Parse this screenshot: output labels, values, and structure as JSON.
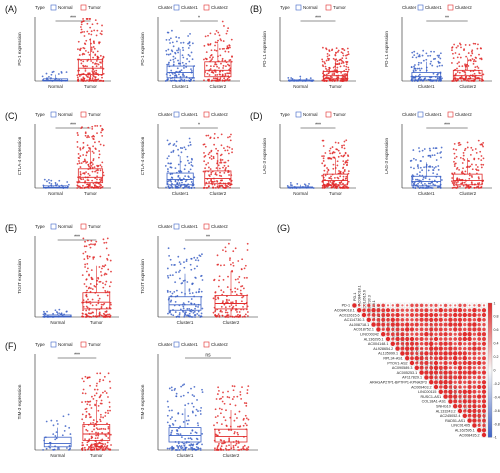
{
  "chart_data": [
    {
      "panel": "(A)",
      "type": "box",
      "legend_title": "Type",
      "ylabel": "PD-1 expression",
      "categories": [
        "Normal",
        "Tumor"
      ],
      "colors": [
        "#3d62c6",
        "#e02a2a"
      ],
      "annotation": "***",
      "ylim": [
        0,
        6
      ],
      "boxes": [
        {
          "min": 0,
          "q1": 0.0,
          "median": 0.05,
          "q3": 0.2,
          "max": 0.6
        },
        {
          "min": 0,
          "q1": 0.6,
          "median": 1.2,
          "q3": 2.0,
          "max": 4.0
        }
      ],
      "points": [
        [
          0,
          0.4
        ],
        [
          25,
          6
        ]
      ]
    },
    {
      "panel": "(A)",
      "type": "box",
      "legend_title": "Cluster",
      "ylabel": "PD-1 expression",
      "categories": [
        "Cluster1",
        "Cluster2"
      ],
      "colors": [
        "#3d62c6",
        "#e02a2a"
      ],
      "annotation": "*",
      "ylim": [
        0,
        6
      ],
      "boxes": [
        {
          "min": 0,
          "q1": 0.3,
          "median": 0.8,
          "q3": 1.4,
          "max": 3.0
        },
        {
          "min": 0,
          "q1": 0.4,
          "median": 1.0,
          "q3": 1.8,
          "max": 3.5
        }
      ],
      "points": [
        [
          15,
          4.2
        ],
        [
          15,
          6
        ]
      ]
    },
    {
      "panel": "(B)",
      "type": "box",
      "legend_title": "Type",
      "ylabel": "PD-L1 expression",
      "categories": [
        "Normal",
        "Tumor"
      ],
      "colors": [
        "#3d62c6",
        "#e02a2a"
      ],
      "annotation": "***",
      "ylim": [
        0,
        6
      ],
      "boxes": [
        {
          "min": 0,
          "q1": 0.0,
          "median": 0.03,
          "q3": 0.1,
          "max": 0.3
        },
        {
          "min": 0,
          "q1": 0.2,
          "median": 0.5,
          "q3": 0.9,
          "max": 2.0
        }
      ],
      "points": [
        [
          0,
          0.4
        ],
        [
          25,
          5.5
        ]
      ]
    },
    {
      "panel": "(B)",
      "type": "box",
      "legend_title": "Cluster",
      "ylabel": "PD-L1 expression",
      "categories": [
        "Cluster1",
        "Cluster2"
      ],
      "colors": [
        "#3d62c6",
        "#e02a2a"
      ],
      "annotation": "**",
      "ylim": [
        0,
        6
      ],
      "boxes": [
        {
          "min": 0,
          "q1": 0.1,
          "median": 0.4,
          "q3": 0.8,
          "max": 1.8
        },
        {
          "min": 0,
          "q1": 0.2,
          "median": 0.5,
          "q3": 1.0,
          "max": 2.2
        }
      ],
      "points": [
        [
          15,
          3.5
        ],
        [
          15,
          5.5
        ]
      ]
    },
    {
      "panel": "(C)",
      "type": "box",
      "legend_title": "Type",
      "ylabel": "CTLA-4 expression",
      "categories": [
        "Normal",
        "Tumor"
      ],
      "colors": [
        "#3d62c6",
        "#e02a2a"
      ],
      "annotation": "***",
      "ylim": [
        0,
        6
      ],
      "boxes": [
        {
          "min": 0,
          "q1": 0.0,
          "median": 0.05,
          "q3": 0.2,
          "max": 0.5
        },
        {
          "min": 0,
          "q1": 0.5,
          "median": 1.0,
          "q3": 1.8,
          "max": 3.8
        }
      ],
      "points": [
        [
          0,
          0.6
        ],
        [
          25,
          6
        ]
      ]
    },
    {
      "panel": "(C)",
      "type": "box",
      "legend_title": "Cluster",
      "ylabel": "CTLA-4 expression",
      "categories": [
        "Cluster1",
        "Cluster2"
      ],
      "colors": [
        "#3d62c6",
        "#e02a2a"
      ],
      "annotation": "*",
      "ylim": [
        0,
        6
      ],
      "boxes": [
        {
          "min": 0,
          "q1": 0.3,
          "median": 0.8,
          "q3": 1.4,
          "max": 3.0
        },
        {
          "min": 0,
          "q1": 0.4,
          "median": 0.9,
          "q3": 1.6,
          "max": 3.3
        }
      ],
      "points": [
        [
          15,
          4.5
        ],
        [
          15,
          6
        ]
      ]
    },
    {
      "panel": "(D)",
      "type": "box",
      "legend_title": "Type",
      "ylabel": "LAG-3 expression",
      "categories": [
        "Normal",
        "Tumor"
      ],
      "colors": [
        "#3d62c6",
        "#e02a2a"
      ],
      "annotation": "***",
      "ylim": [
        0,
        6
      ],
      "boxes": [
        {
          "min": 0,
          "q1": 0.0,
          "median": 0.03,
          "q3": 0.1,
          "max": 0.3
        },
        {
          "min": 0,
          "q1": 0.3,
          "median": 0.7,
          "q3": 1.3,
          "max": 2.8
        }
      ],
      "points": [
        [
          0,
          0.4
        ],
        [
          25,
          6
        ]
      ]
    },
    {
      "panel": "(D)",
      "type": "box",
      "legend_title": "Cluster",
      "ylabel": "LAG-3 expression",
      "categories": [
        "Cluster1",
        "Cluster2"
      ],
      "colors": [
        "#3d62c6",
        "#e02a2a"
      ],
      "annotation": "***",
      "ylim": [
        0,
        6
      ],
      "boxes": [
        {
          "min": 0,
          "q1": 0.2,
          "median": 0.6,
          "q3": 1.1,
          "max": 2.4
        },
        {
          "min": 0,
          "q1": 0.3,
          "median": 0.7,
          "q3": 1.3,
          "max": 2.8
        }
      ],
      "points": [
        [
          15,
          4.0
        ],
        [
          15,
          6
        ]
      ]
    },
    {
      "panel": "(E)",
      "type": "box",
      "legend_title": "Type",
      "ylabel": "TIGIT expression",
      "categories": [
        "Normal",
        "Tumor"
      ],
      "colors": [
        "#3d62c6",
        "#e02a2a"
      ],
      "annotation": "***",
      "ylim": [
        0,
        6
      ],
      "boxes": [
        {
          "min": 0,
          "q1": 0.0,
          "median": 0.05,
          "q3": 0.15,
          "max": 0.4
        },
        {
          "min": 0,
          "q1": 0.6,
          "median": 1.1,
          "q3": 1.8,
          "max": 3.8
        }
      ],
      "points": [
        [
          0,
          0.8
        ],
        [
          25,
          6
        ]
      ]
    },
    {
      "panel": "(E)",
      "type": "box",
      "legend_title": "Cluster",
      "ylabel": "TIGIT expression",
      "categories": [
        "Cluster1",
        "Cluster2"
      ],
      "colors": [
        "#3d62c6",
        "#e02a2a"
      ],
      "annotation": "**",
      "ylim": [
        0,
        6
      ],
      "boxes": [
        {
          "min": 0,
          "q1": 0.5,
          "median": 0.9,
          "q3": 1.5,
          "max": 3.2
        },
        {
          "min": 0,
          "q1": 0.6,
          "median": 1.0,
          "q3": 1.6,
          "max": 3.4
        }
      ],
      "points": [
        [
          15,
          5.5
        ],
        [
          15,
          6
        ]
      ]
    },
    {
      "panel": "(F)",
      "type": "box",
      "legend_title": "Type",
      "ylabel": "TIM-3 expression",
      "categories": [
        "Normal",
        "Tumor"
      ],
      "colors": [
        "#3d62c6",
        "#e02a2a"
      ],
      "annotation": "***",
      "ylim": [
        0,
        6
      ],
      "boxes": [
        {
          "min": 0,
          "q1": 0.2,
          "median": 0.4,
          "q3": 0.8,
          "max": 1.4
        },
        {
          "min": 0,
          "q1": 0.6,
          "median": 1.0,
          "q3": 1.6,
          "max": 3.0
        }
      ],
      "points": [
        [
          0,
          1.5
        ],
        [
          30,
          6
        ]
      ]
    },
    {
      "panel": "(F)",
      "type": "box",
      "legend_title": "Cluster",
      "ylabel": "TIM-3 expression",
      "categories": [
        "Cluster1",
        "Cluster2"
      ],
      "colors": [
        "#3d62c6",
        "#e02a2a"
      ],
      "annotation": "ns",
      "ylim": [
        0,
        6
      ],
      "boxes": [
        {
          "min": 0,
          "q1": 0.5,
          "median": 0.9,
          "q3": 1.4,
          "max": 2.6
        },
        {
          "min": 0,
          "q1": 0.5,
          "median": 0.85,
          "q3": 1.3,
          "max": 2.5
        }
      ],
      "points": [
        [
          15,
          6
        ],
        [
          15,
          5
        ]
      ]
    },
    {
      "panel": "(G)",
      "type": "correlation",
      "row_labels": [
        "PD-1",
        "AC084018.1",
        "AC012615.6",
        "AC114730.3",
        "AL008718.1",
        "AC018752.1",
        "LINC00342",
        "AL136295.1",
        "AC004148.1",
        "AL928654.2",
        "AL135999.1",
        "RPL34-AS1",
        "PTOV1-AS2",
        "AC090589.3",
        "AC005253.1",
        "AF117829.1",
        "ARHGAP27P1-BPTFP1-KPNA2P3",
        "AC009403.2",
        "LINC00115",
        "RUSC1-AS1",
        "COL18A1-AS1",
        "SNHG10",
        "AL133243.2",
        "AC245052.4",
        "RAD51-AS1",
        "LINC01405",
        "AL162595.1",
        "AC008435.2"
      ],
      "colorbar_ticks": [
        "1",
        "0.8",
        "0.6",
        "0.4",
        "0.2",
        "0",
        "-0.2",
        "-0.4",
        "-0.6",
        "-0.8",
        "-1"
      ],
      "colors": {
        "positive": "#e02a2a",
        "negative": "#3d62c6",
        "neutral": "#f7f7f7"
      }
    }
  ]
}
